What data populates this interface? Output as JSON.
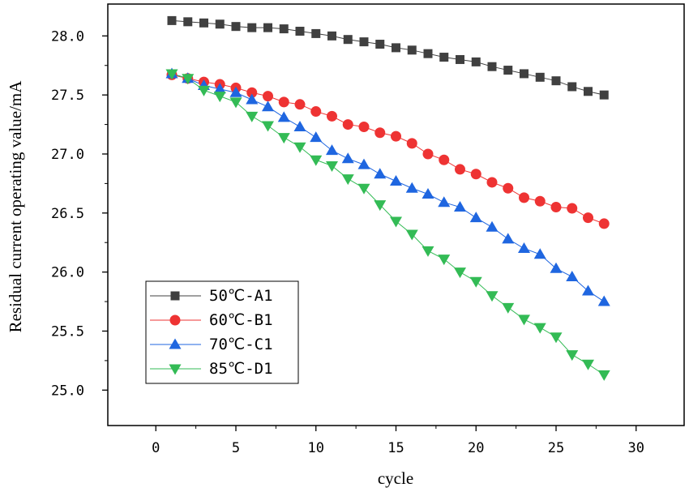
{
  "chart_data": {
    "type": "line",
    "title": "",
    "xlabel": "cycle",
    "ylabel": "Residual current operating value/mA",
    "xlim": [
      -3,
      33
    ],
    "ylim": [
      24.7,
      28.27
    ],
    "xticks": [
      0,
      5,
      10,
      15,
      20,
      25,
      30
    ],
    "xtick_labels": [
      "0",
      "5",
      "10",
      "15",
      "20",
      "25",
      "30"
    ],
    "yticks": [
      25.0,
      25.5,
      26.0,
      26.5,
      27.0,
      27.5,
      28.0
    ],
    "ytick_labels": [
      "25.0",
      "25.5",
      "26.0",
      "26.5",
      "27.0",
      "27.5",
      "28.0"
    ],
    "grid": false,
    "legend_position": "bottom-left",
    "x": [
      1,
      2,
      3,
      4,
      5,
      6,
      7,
      8,
      9,
      10,
      11,
      12,
      13,
      14,
      15,
      16,
      17,
      18,
      19,
      20,
      21,
      22,
      23,
      24,
      25,
      26,
      27,
      28
    ],
    "series": [
      {
        "name": "50℃-A1",
        "color": "#404040",
        "marker": "square",
        "values": [
          28.13,
          28.12,
          28.11,
          28.1,
          28.08,
          28.07,
          28.07,
          28.06,
          28.04,
          28.02,
          28.0,
          27.97,
          27.95,
          27.93,
          27.9,
          27.88,
          27.85,
          27.82,
          27.8,
          27.78,
          27.74,
          27.71,
          27.68,
          27.65,
          27.62,
          27.57,
          27.53,
          27.5
        ]
      },
      {
        "name": "60℃-B1",
        "color": "#ee3333",
        "marker": "circle",
        "values": [
          27.67,
          27.64,
          27.61,
          27.59,
          27.56,
          27.52,
          27.49,
          27.44,
          27.42,
          27.36,
          27.32,
          27.25,
          27.23,
          27.18,
          27.15,
          27.09,
          27.0,
          26.95,
          26.87,
          26.83,
          26.76,
          26.71,
          26.63,
          26.6,
          26.55,
          26.54,
          26.46,
          26.41
        ]
      },
      {
        "name": "70℃-C1",
        "color": "#1f66e0",
        "marker": "triangle-up",
        "values": [
          27.68,
          27.64,
          27.58,
          27.55,
          27.52,
          27.46,
          27.4,
          27.31,
          27.23,
          27.14,
          27.03,
          26.96,
          26.91,
          26.83,
          26.77,
          26.71,
          26.66,
          26.59,
          26.55,
          26.46,
          26.38,
          26.28,
          26.2,
          26.15,
          26.03,
          25.96,
          25.84,
          25.75
        ]
      },
      {
        "name": "85℃-D1",
        "color": "#33bb55",
        "marker": "triangle-down",
        "values": [
          27.68,
          27.64,
          27.54,
          27.49,
          27.44,
          27.32,
          27.24,
          27.14,
          27.06,
          26.95,
          26.9,
          26.79,
          26.71,
          26.57,
          26.43,
          26.32,
          26.18,
          26.11,
          26.0,
          25.92,
          25.8,
          25.7,
          25.6,
          25.53,
          25.45,
          25.3,
          25.22,
          25.13
        ]
      }
    ]
  }
}
